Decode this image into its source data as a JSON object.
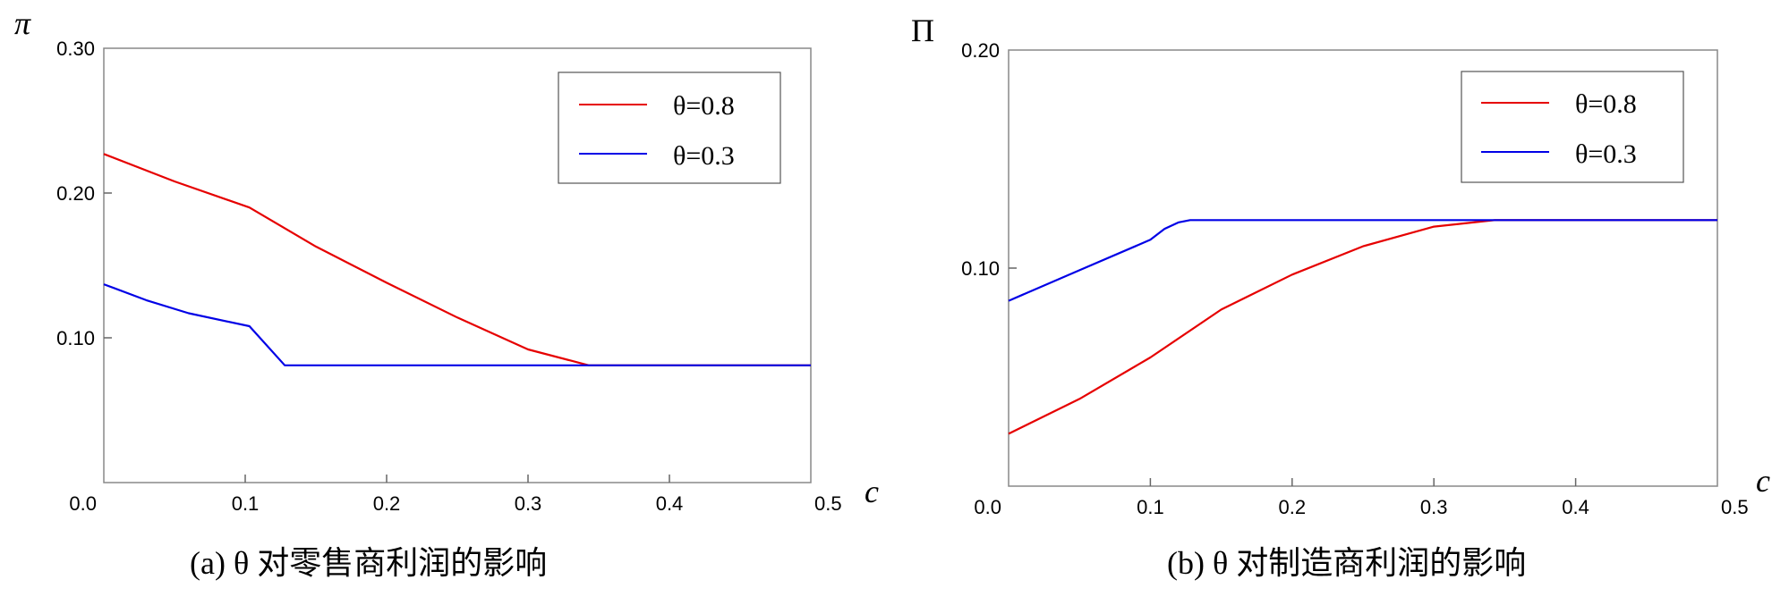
{
  "chart_data": [
    {
      "type": "line",
      "caption": "(a) θ 对零售商利润的影响",
      "ylabel": "π",
      "xlabel": "c",
      "xlim": [
        0,
        0.5
      ],
      "ylim": [
        0,
        0.3
      ],
      "xticks": [
        "0.0",
        "0.1",
        "0.2",
        "0.3",
        "0.4",
        "0.5"
      ],
      "yticks": [
        "0.10",
        "0.20",
        "0.30"
      ],
      "series": [
        {
          "name": "θ=0.8",
          "color": "#e60000",
          "x": [
            0,
            0.05,
            0.103,
            0.15,
            0.2,
            0.25,
            0.3,
            0.343,
            0.5
          ],
          "y": [
            0.227,
            0.208,
            0.19,
            0.163,
            0.138,
            0.114,
            0.092,
            0.081,
            0.081
          ]
        },
        {
          "name": "θ=0.3",
          "color": "#0000e6",
          "x": [
            0,
            0.03,
            0.06,
            0.103,
            0.128,
            0.343,
            0.5
          ],
          "y": [
            0.137,
            0.126,
            0.117,
            0.108,
            0.081,
            0.081,
            0.081
          ]
        }
      ]
    },
    {
      "type": "line",
      "caption": "(b) θ 对制造商利润的影响",
      "ylabel": "Π",
      "xlabel": "c",
      "xlim": [
        0,
        0.5
      ],
      "ylim": [
        0,
        0.2
      ],
      "xticks": [
        "0.0",
        "0.1",
        "0.2",
        "0.3",
        "0.4",
        "0.5"
      ],
      "yticks": [
        "0.10",
        "0.20"
      ],
      "series": [
        {
          "name": "θ=0.8",
          "color": "#e60000",
          "x": [
            0,
            0.05,
            0.1,
            0.15,
            0.2,
            0.25,
            0.3,
            0.343,
            0.5
          ],
          "y": [
            0.024,
            0.04,
            0.059,
            0.081,
            0.097,
            0.11,
            0.119,
            0.122,
            0.122
          ]
        },
        {
          "name": "θ=0.3",
          "color": "#0000e6",
          "x": [
            0,
            0.05,
            0.1,
            0.11,
            0.12,
            0.128,
            0.343,
            0.5
          ],
          "y": [
            0.085,
            0.099,
            0.113,
            0.118,
            0.121,
            0.122,
            0.122,
            0.122
          ]
        }
      ]
    }
  ]
}
